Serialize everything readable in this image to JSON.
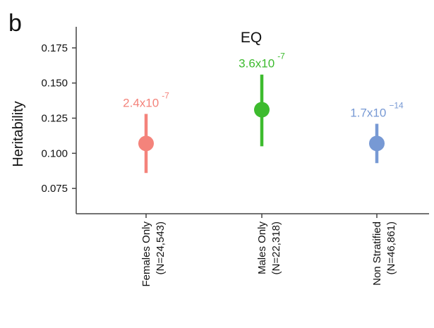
{
  "panel_label": "b",
  "chart_data": {
    "type": "scatter",
    "title": "EQ",
    "xlabel": "",
    "ylabel": "Heritability",
    "ylim": [
      0.057,
      0.19
    ],
    "yticks": [
      "0.075",
      "0.100",
      "0.125",
      "0.150",
      "0.175"
    ],
    "grid": false,
    "categories": [
      {
        "line1": "Females Only",
        "line2": "(N=24,543)"
      },
      {
        "line1": "Males Only",
        "line2": "(N=22,318)"
      },
      {
        "line1": "Non Stratified",
        "line2": "(N=46,861)"
      }
    ],
    "values": [
      0.107,
      0.131,
      0.107
    ],
    "ci_low": [
      0.086,
      0.105,
      0.093
    ],
    "ci_high": [
      0.128,
      0.156,
      0.121
    ],
    "pvalue_labels": [
      {
        "base": "2.4x10",
        "exp": "-7"
      },
      {
        "base": "3.6x10",
        "exp": "-7"
      },
      {
        "base": "1.7x10",
        "exp": "−14"
      }
    ],
    "colors": [
      "#f4837b",
      "#3dbb2e",
      "#7799d4"
    ]
  }
}
